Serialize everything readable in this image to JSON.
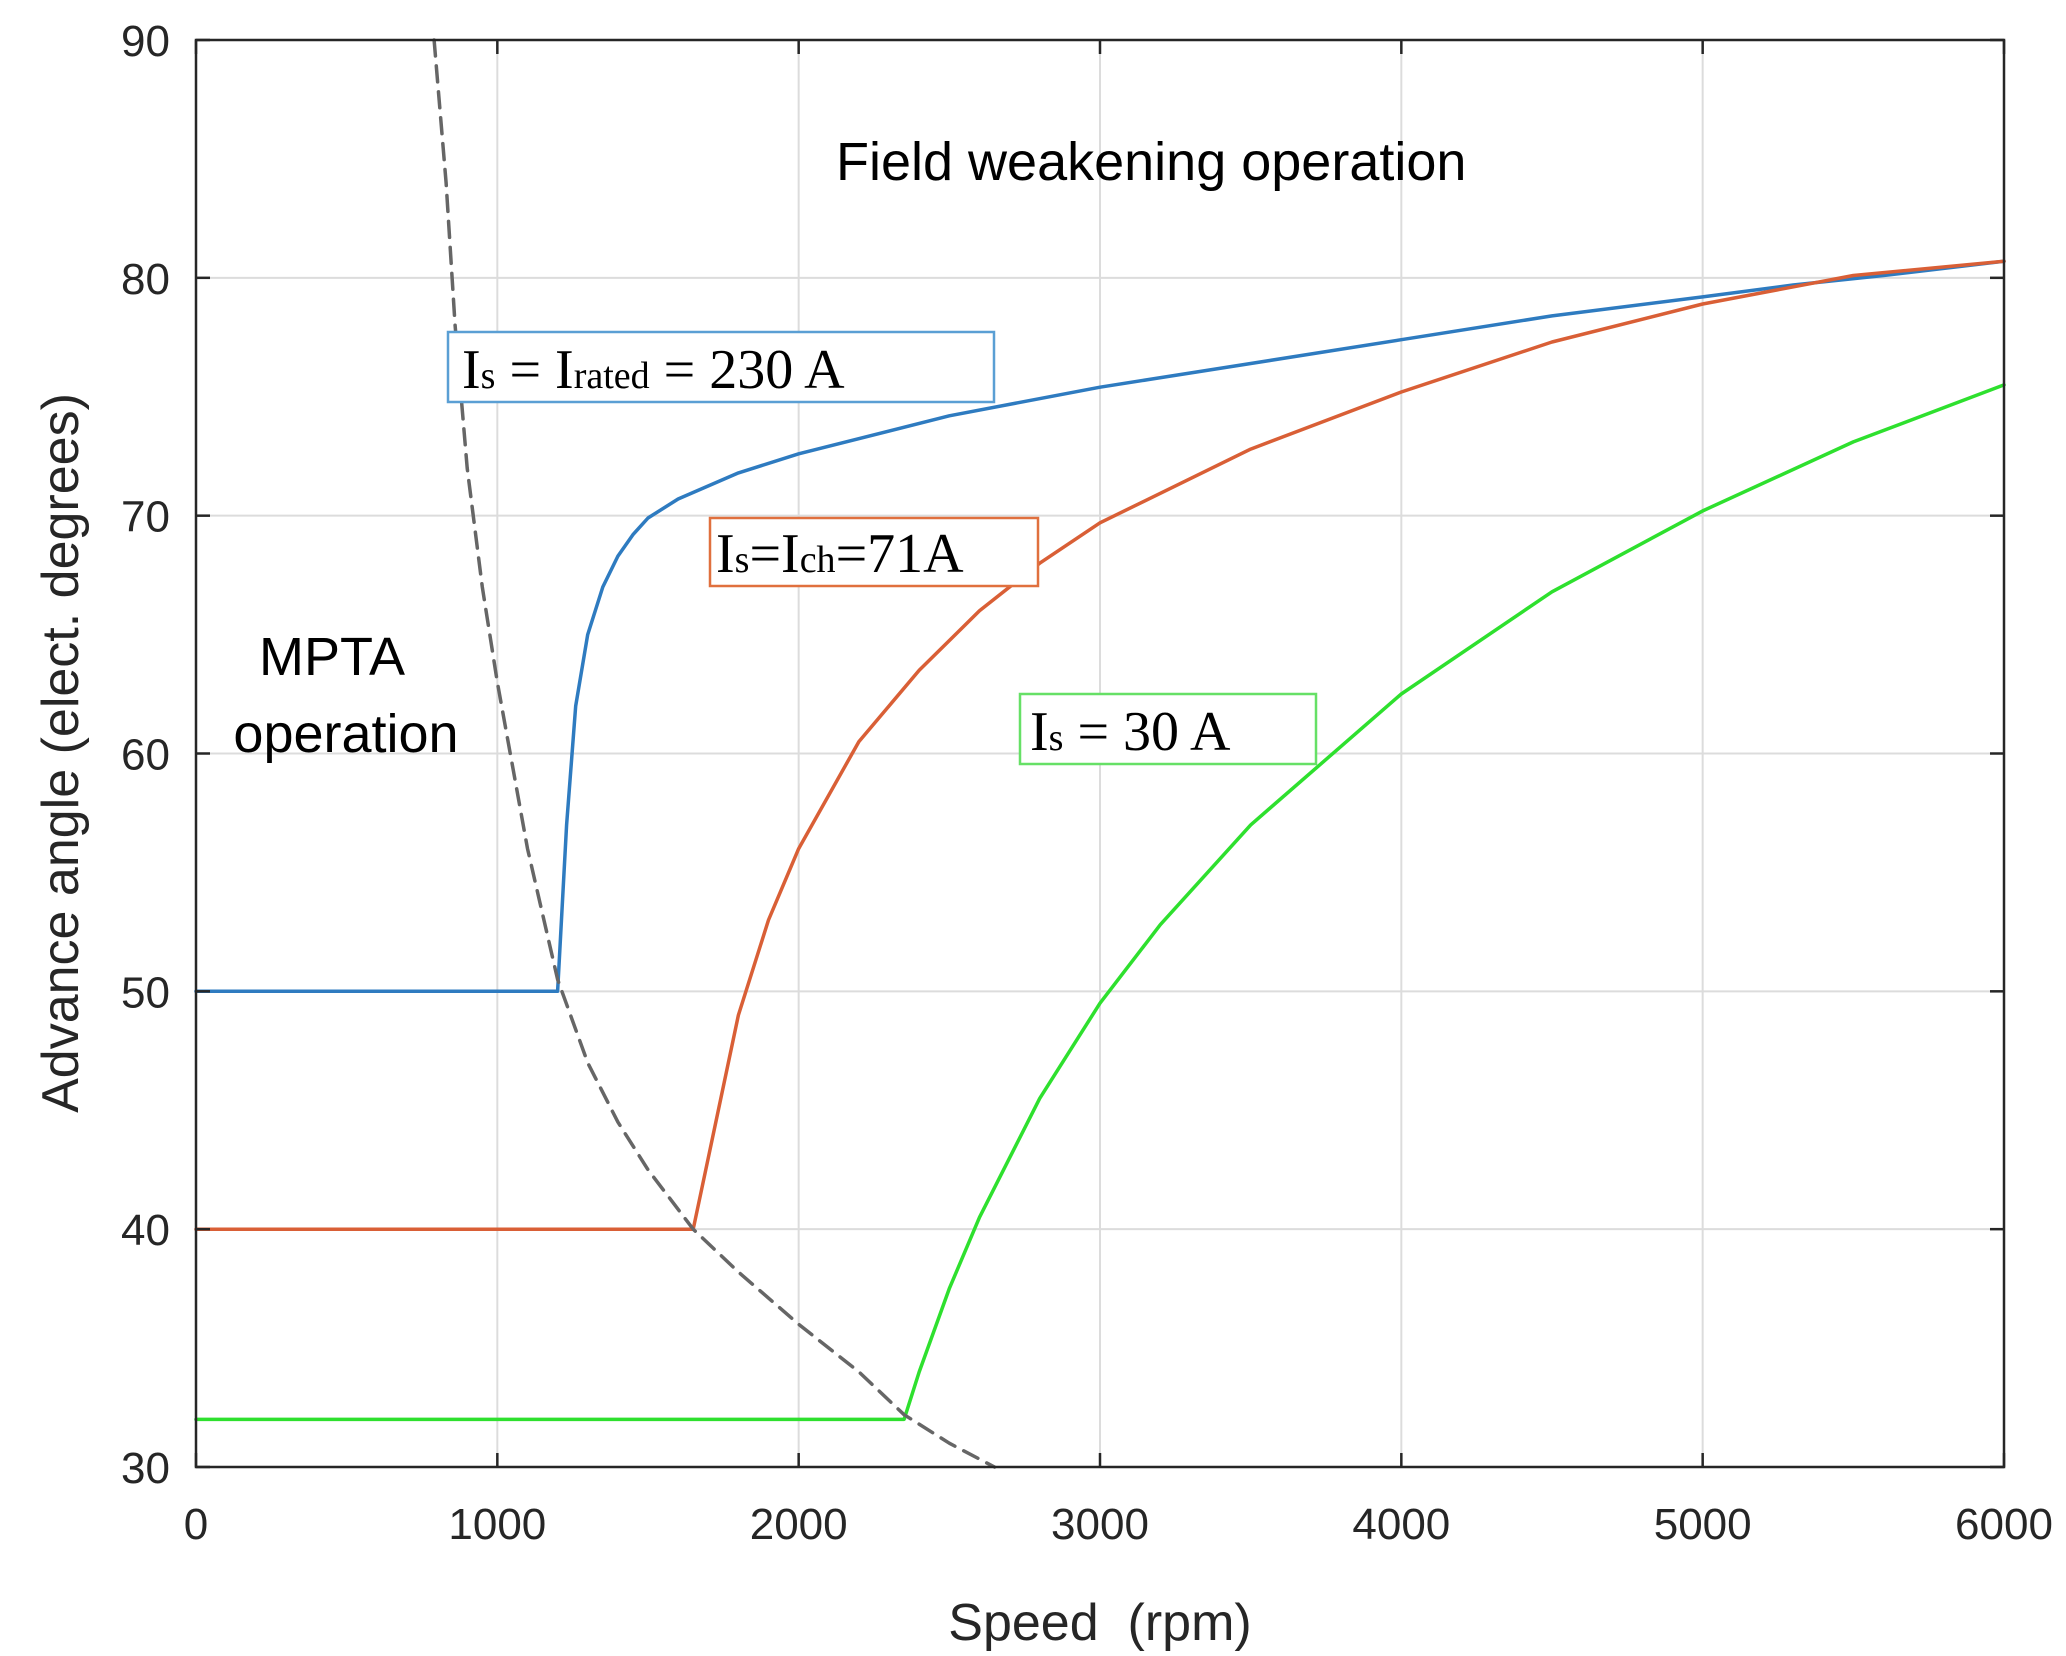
{
  "chart_data": {
    "type": "line",
    "xlabel": "Speed  (rpm)",
    "ylabel": "Advance angle (elect. degrees)",
    "xlim": [
      0,
      6000
    ],
    "ylim": [
      30,
      90
    ],
    "xticks": [
      "0",
      "1000",
      "2000",
      "3000",
      "4000",
      "5000",
      "6000"
    ],
    "yticks": [
      "30",
      "40",
      "50",
      "60",
      "70",
      "80",
      "90"
    ],
    "grid": true,
    "annotations": {
      "field_weakening": "Field weakening operation",
      "mpta_line1": "MPTA",
      "mpta_line2": "operation"
    },
    "series": [
      {
        "name": "Is = Irated = 230 A",
        "label_main1": "I",
        "label_sub1": "s",
        "label_mid": " = I",
        "label_sub2": "rated",
        "label_end": " = 230 A",
        "color": "#2e7bc0",
        "x": [
          0,
          1200,
          1230,
          1260,
          1300,
          1350,
          1400,
          1450,
          1500,
          1600,
          1800,
          2000,
          2500,
          3000,
          3500,
          4000,
          4500,
          5000,
          5300,
          5600,
          6000
        ],
        "y": [
          50,
          50,
          57,
          62,
          65,
          67,
          68.3,
          69.2,
          69.9,
          70.7,
          71.8,
          72.6,
          74.2,
          75.4,
          76.4,
          77.4,
          78.4,
          79.2,
          79.7,
          80.1,
          80.7
        ]
      },
      {
        "name": "Is=Ich=71A",
        "label_main1": "I",
        "label_sub1": "s",
        "label_mid": "=I",
        "label_sub2": "ch",
        "label_end": "=71A",
        "color": "#d95f36",
        "x": [
          0,
          1650,
          1700,
          1800,
          1900,
          2000,
          2200,
          2400,
          2600,
          2800,
          3000,
          3500,
          4000,
          4500,
          5000,
          5500,
          6000
        ],
        "y": [
          40,
          40,
          43,
          49,
          53,
          56,
          60.5,
          63.5,
          66,
          68,
          69.7,
          72.8,
          75.2,
          77.3,
          78.9,
          80.1,
          80.7
        ]
      },
      {
        "name": "Is = 30 A",
        "label_main1": "I",
        "label_sub1": "s",
        "label_mid": "",
        "label_sub2": "",
        "label_end": " = 30 A",
        "color": "#2ee02e",
        "x": [
          0,
          2350,
          2400,
          2500,
          2600,
          2800,
          3000,
          3200,
          3500,
          4000,
          4500,
          5000,
          5500,
          6000
        ],
        "y": [
          32,
          32,
          34,
          37.5,
          40.5,
          45.5,
          49.5,
          52.8,
          57,
          62.5,
          66.8,
          70.2,
          73.1,
          75.5
        ]
      },
      {
        "name": "MPTA boundary",
        "style": "dashed",
        "color": "#666666",
        "x": [
          790,
          830,
          860,
          900,
          950,
          1000,
          1100,
          1200,
          1300,
          1400,
          1500,
          1650,
          1800,
          2000,
          2200,
          2350,
          2500,
          2650
        ],
        "y": [
          90,
          84,
          78,
          72,
          67,
          63,
          56,
          50.5,
          47,
          44.5,
          42.5,
          40,
          38.2,
          36,
          34,
          32.2,
          31,
          30
        ]
      }
    ]
  }
}
